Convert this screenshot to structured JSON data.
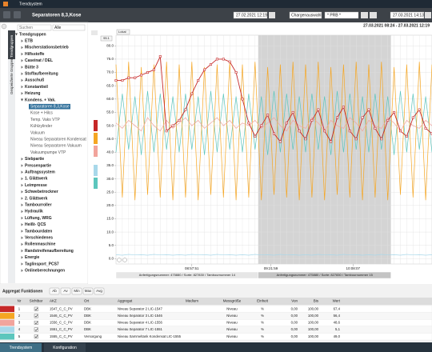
{
  "app": {
    "name": "Trendsystem"
  },
  "header": {
    "title": "Separatoren 8,3,Kose",
    "start": "27.02.2021 12:19",
    "batch_select": "Chargenauswahl",
    "batch": "* PRB *",
    "end": "27.03.2021 14:13"
  },
  "sidebar": {
    "tabs": [
      "Trendgruppen",
      "Gespeicherte Gruppen"
    ],
    "search": "Suchen",
    "filter": "Alle",
    "tree": {
      "label": "Trendgruppen",
      "children": [
        {
          "label": "ETB"
        },
        {
          "label": "Mischerstationsbetrieb"
        },
        {
          "label": "Hilfsstoffe"
        },
        {
          "label": "Caseinat / DEL"
        },
        {
          "label": "Bütte 3"
        },
        {
          "label": "Stoffaufbereitung"
        },
        {
          "label": "Ausschuß"
        },
        {
          "label": "Konstantteil"
        },
        {
          "label": "Heizung"
        },
        {
          "label": "Kondens. + Vak.",
          "children": [
            {
              "label": "Separatoren 8,3,Kose",
              "selected": true
            },
            {
              "label": "Kose + Hilcs"
            },
            {
              "label": "Temp. Vaks VTP"
            },
            {
              "label": "Kühlzylinder"
            },
            {
              "label": "Vakuum"
            },
            {
              "label": "Niveau Separatoren Kondensat"
            },
            {
              "label": "Niveau Separatoren Vakuum"
            },
            {
              "label": "Vakuumpumpe VTP"
            }
          ]
        },
        {
          "label": "Siebpartie"
        },
        {
          "label": "Pressenpartie"
        },
        {
          "label": "Auftragssystem"
        },
        {
          "label": "1. Glättwerk"
        },
        {
          "label": "Leimpresse"
        },
        {
          "label": "Schwebetrockner"
        },
        {
          "label": "2. Glättwerk"
        },
        {
          "label": "Tambourroller"
        },
        {
          "label": "Hydraulik"
        },
        {
          "label": "Lüftung, WRG"
        },
        {
          "label": "Heißt- QCS"
        },
        {
          "label": "Tambourdaten"
        },
        {
          "label": "Verschiedenes"
        },
        {
          "label": "Rollenmaschine"
        },
        {
          "label": "Randstreifenaufbereitung"
        },
        {
          "label": "Energie"
        },
        {
          "label": "Taglinsport_PCS7"
        },
        {
          "label": "Onlineberechnungen"
        }
      ]
    }
  },
  "chart": {
    "type": "line",
    "range": "27.03.2021 08:24 - 27.03.2021 12:19",
    "lock": "Lokal",
    "scale_top": "95.1",
    "grid": true,
    "xlim": [
      0,
      100
    ],
    "ylim": [
      -2,
      84
    ],
    "yticks": [
      {
        "value": 0,
        "label": "0.0"
      },
      {
        "value": 5,
        "label": "5.0"
      },
      {
        "value": 10,
        "label": "10.0"
      },
      {
        "value": 15,
        "label": "15.0"
      },
      {
        "value": 20,
        "label": "20.0"
      },
      {
        "value": 25,
        "label": "25.0"
      },
      {
        "value": 30,
        "label": "30.0"
      },
      {
        "value": 35,
        "label": "35.0"
      },
      {
        "value": 40,
        "label": "40.0"
      },
      {
        "value": 45,
        "label": "45.0"
      },
      {
        "value": 50,
        "label": "50.0"
      },
      {
        "value": 55,
        "label": "55.0"
      },
      {
        "value": 60,
        "label": "60.0"
      },
      {
        "value": 65,
        "label": "65.0"
      },
      {
        "value": 70,
        "label": "70.0"
      },
      {
        "value": 75,
        "label": "75.0"
      },
      {
        "value": 80,
        "label": "80.0"
      }
    ],
    "xticks": [
      {
        "value": 24,
        "label": "08:57:51"
      },
      {
        "value": 49,
        "label": "09:21:59"
      },
      {
        "value": 75,
        "label": "10:08:07"
      }
    ],
    "batches": [
      {
        "label": "Anfertigungsnummer: 475880 / Sorte: 827830 / Tambournummer 14",
        "from": 0,
        "to": 45,
        "shaded": false
      },
      {
        "label": "Anfertigungsnummer: 475880 / Sorte: 827830 / Tambournummer 15",
        "from": 45,
        "to": 87,
        "shaded": true
      }
    ],
    "x": [
      0,
      2,
      4,
      6,
      8,
      10,
      12,
      14,
      16,
      18,
      20,
      22,
      24,
      26,
      28,
      30,
      32,
      34,
      36,
      38,
      40,
      42,
      44,
      46,
      48,
      50,
      52,
      54,
      56,
      58,
      60,
      62,
      64,
      66,
      68,
      70,
      72,
      74,
      76,
      78,
      80,
      82,
      84,
      86,
      88,
      90,
      92,
      94,
      96,
      98,
      100
    ],
    "series": [
      {
        "color": "#c62828",
        "markers": true,
        "values": [
          67,
          67,
          68,
          68,
          69,
          70,
          71,
          76,
          48,
          50,
          52,
          56,
          62,
          67,
          71,
          73,
          75,
          75,
          74,
          70,
          60,
          51,
          46,
          50,
          54,
          47,
          44,
          51,
          55,
          48,
          45,
          52,
          56,
          48,
          44,
          53,
          57,
          48,
          45,
          53,
          56,
          49,
          45,
          52,
          55,
          48,
          46,
          53,
          56,
          49,
          47
        ]
      },
      {
        "color": "#f5a623",
        "markers": false,
        "values": [
          73,
          23,
          74,
          22,
          72,
          24,
          73,
          23,
          74,
          22,
          73,
          23,
          74,
          22,
          72,
          24,
          73,
          23,
          74,
          22,
          73,
          23,
          74,
          22,
          72,
          24,
          73,
          23,
          74,
          22,
          73,
          23,
          74,
          22,
          72,
          24,
          73,
          23,
          74,
          22,
          73,
          23,
          74,
          22,
          72,
          24,
          73,
          23,
          74,
          22,
          73
        ]
      },
      {
        "color": "#f2a49c",
        "markers": false,
        "values": [
          51,
          49,
          52,
          50,
          48,
          53,
          50,
          48,
          52,
          49,
          51,
          53,
          50,
          52,
          49,
          51,
          53,
          50,
          52,
          49,
          51,
          50,
          52,
          49,
          51,
          53,
          50,
          48,
          52,
          50,
          49,
          53,
          51,
          48,
          52,
          50,
          49,
          53,
          51,
          48,
          52,
          50,
          49,
          53,
          51,
          48,
          52,
          50,
          49,
          52,
          50
        ]
      },
      {
        "color": "#a8d8ea",
        "markers": false,
        "values": [
          1.5,
          1.3,
          1.6,
          1.4,
          1.5,
          1.3,
          1.6,
          1.4,
          1.5,
          1.3,
          1.5,
          1.3,
          1.6,
          1.4,
          1.5,
          1.3,
          1.6,
          1.4,
          1.5,
          1.3,
          1.5,
          1.3,
          1.6,
          1.4,
          1.5,
          1.3,
          1.6,
          1.4,
          1.5,
          1.3,
          1.5,
          1.3,
          1.6,
          1.4,
          1.5,
          1.3,
          1.6,
          1.4,
          1.5,
          1.3,
          1.5,
          1.3,
          1.6,
          1.4,
          1.5,
          1.3,
          1.6,
          1.4,
          1.5,
          1.3,
          1.5
        ]
      },
      {
        "color": "#5cc6bd",
        "markers": false,
        "values": [
          40,
          62,
          41,
          61,
          39,
          63,
          40,
          62,
          41,
          61,
          40,
          62,
          41,
          61,
          39,
          63,
          40,
          62,
          41,
          61,
          40,
          62,
          41,
          61,
          39,
          63,
          40,
          62,
          41,
          61,
          40,
          62,
          41,
          61,
          39,
          63,
          40,
          62,
          41,
          61,
          40,
          62,
          41,
          61,
          39,
          63,
          40,
          62,
          41,
          61,
          40
        ]
      }
    ]
  },
  "aggregates": {
    "title": "Aggregat Funktionen",
    "buttons": [
      "Ab",
      "Av",
      "Min",
      "Max",
      "Avg"
    ],
    "columns": [
      "Nr",
      "Sichtbar",
      "AKZ",
      "Ort",
      "Aggregat",
      "Medium",
      "Messgröße",
      "Einheit",
      "Von",
      "Bis",
      "Wert"
    ],
    "rows": [
      [
        "1",
        "1547_C_C_PV",
        "DBK",
        "Niveau Separator 2 LIC-1547",
        "Niveau",
        "%",
        "0,00",
        "100,00",
        "67,4"
      ],
      [
        "2",
        "1546_C_C_PV",
        "DBK",
        "Niveau Separator 3 LIC-1546",
        "Niveau",
        "%",
        "0,00",
        "100,00",
        "56,4"
      ],
      [
        "3",
        "1556_C_C_PV",
        "DBK",
        "Niveau Separator 4 LIC-1556",
        "Niveau",
        "%",
        "0,00",
        "100,00",
        "48,6"
      ],
      [
        "4",
        "1551_C_C_PV",
        "DBK",
        "Niveau Separator 7 LIC-1551",
        "Niveau",
        "%",
        "0,00",
        "100,00",
        "5,1"
      ],
      [
        "5",
        "1555_C_C_PV",
        "Versorgung",
        "Niveau Sammeltank Kondensat LIC-1555",
        "Niveau",
        "%",
        "0,00",
        "100,00",
        "49,0"
      ]
    ]
  },
  "footer": {
    "tabs": [
      "Trendsystem",
      "Konfiguration"
    ]
  }
}
